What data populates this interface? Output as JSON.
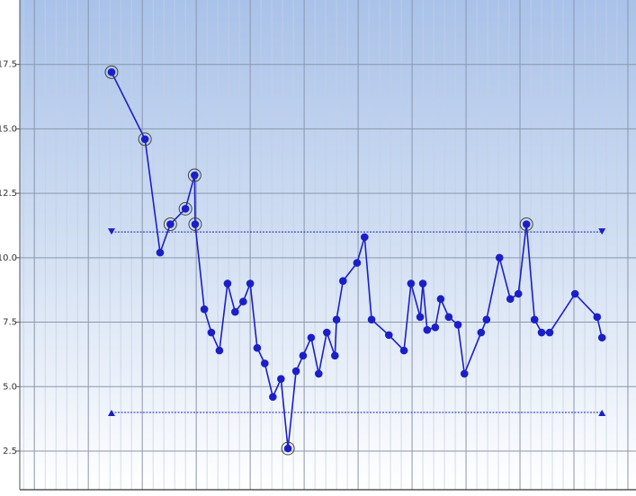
{
  "chart_data": {
    "type": "line",
    "xlim": [
      -0.27,
      11.15
    ],
    "xticks": [
      0,
      1,
      2,
      3,
      4,
      5,
      6,
      7,
      8,
      9,
      10,
      11
    ],
    "ylim": [
      1,
      20
    ],
    "yticks": [
      2.5,
      {
        "value": 5,
        "label": "5.0"
      },
      7.5,
      {
        "value": 10,
        "label": "10.0"
      },
      12.5,
      {
        "value": 15,
        "label": "15.0"
      },
      17.5
    ],
    "grid": true,
    "color": "#1a1fc8",
    "x": [
      1.43,
      2.05,
      2.33,
      2.52,
      2.8,
      2.97,
      2.98,
      3.15,
      3.28,
      3.43,
      3.58,
      3.72,
      3.87,
      4.0,
      4.13,
      4.27,
      4.42,
      4.57,
      4.7,
      4.85,
      4.98,
      5.13,
      5.27,
      5.42,
      5.57,
      5.6,
      5.72,
      5.98,
      6.12,
      6.25,
      6.57,
      6.85,
      6.98,
      7.15,
      7.2,
      7.28,
      7.43,
      7.53,
      7.68,
      7.85,
      7.97,
      8.28,
      8.38,
      8.62,
      8.82,
      8.97,
      9.12,
      9.27,
      9.4,
      9.55,
      10.02,
      10.43,
      10.52
    ],
    "values": [
      17.2,
      14.6,
      10.2,
      11.3,
      11.9,
      13.2,
      11.3,
      8.0,
      7.1,
      6.4,
      9.0,
      7.9,
      8.3,
      9.0,
      6.5,
      5.9,
      4.6,
      5.3,
      2.6,
      5.6,
      6.2,
      6.9,
      5.5,
      7.1,
      6.2,
      7.6,
      9.1,
      9.8,
      10.8,
      7.6,
      7.0,
      6.4,
      9.0,
      7.7,
      9.0,
      7.2,
      7.3,
      8.4,
      7.7,
      7.4,
      5.5,
      7.1,
      7.6,
      10.0,
      8.4,
      8.6,
      11.3,
      7.6,
      7.1,
      7.1,
      8.6,
      7.7,
      6.9
    ],
    "highlighted": [
      0,
      1,
      3,
      4,
      5,
      6,
      18,
      46
    ],
    "limits": [
      {
        "value": 11,
        "marker": "down"
      },
      {
        "value": 4,
        "marker": "up"
      }
    ]
  }
}
